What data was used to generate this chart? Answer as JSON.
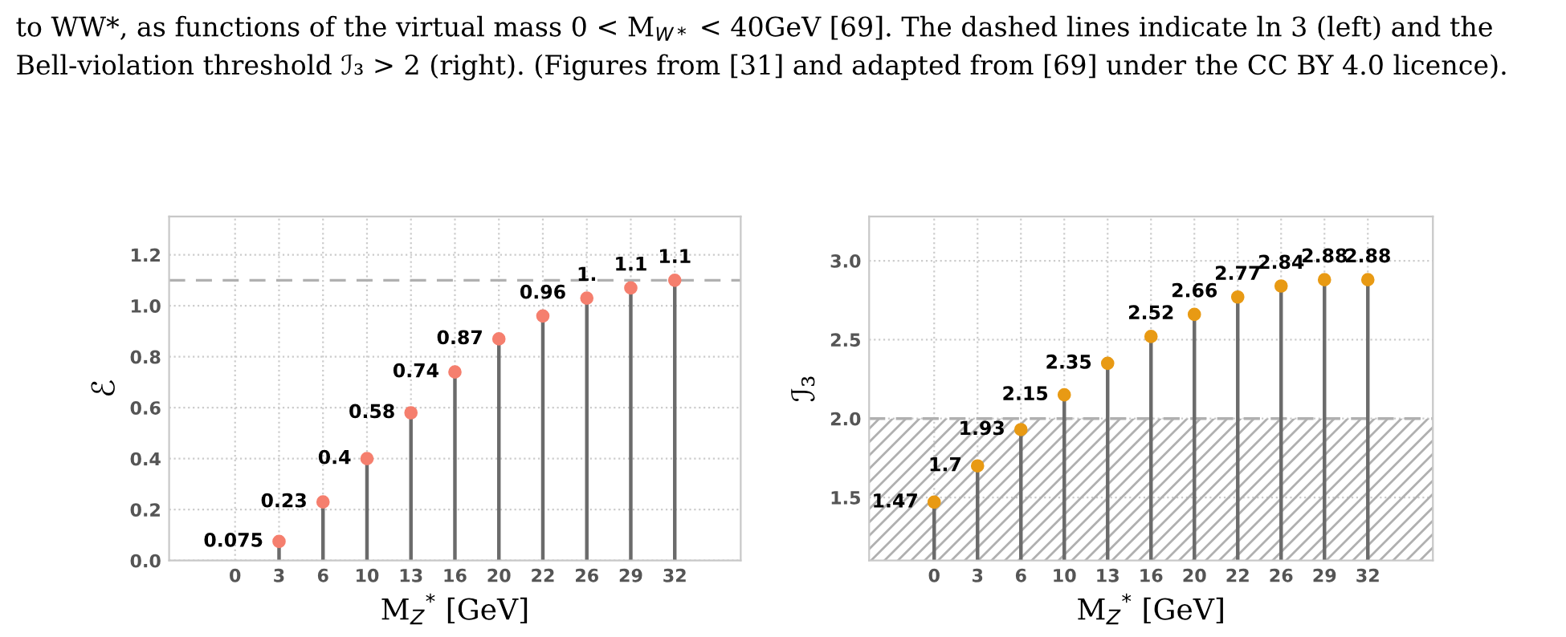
{
  "chart_data": [
    {
      "type": "lollipop",
      "xlabel": "M$_{Z}$$^{*}$ [GeV]",
      "ylabel": "ℰ",
      "annotations": [
        "to WW*, as functions of the virtual mass 0 < M$_{W*}$ < 40GeV [69]. The dashed lines indicate ln 3 (left) and the",
        "Bell-violation threshold ℐ₃ > 2 (right). (Figures from [31] and adapted from [69] under the CC BY 4.0 licence)."
      ],
      "categories": [
        "0",
        "3",
        "6",
        "10",
        "13",
        "16",
        "20",
        "22",
        "26",
        "29",
        "32"
      ],
      "series": [
        {
          "color": "#f57f6e",
          "values": [
            null,
            0.075,
            0.23,
            0.4,
            0.58,
            0.74,
            0.87,
            0.96,
            1.03,
            1.07,
            1.1
          ],
          "value_labels": [
            null,
            "0.075",
            "0.23",
            "0.4",
            "0.58",
            "0.74",
            "0.87",
            "0.96",
            "1.",
            "1.1",
            "1.1"
          ]
        }
      ],
      "ylim": [
        0,
        1.35
      ],
      "yticks": [
        {
          "value": 0,
          "label": "0.0"
        },
        0.2,
        0.4,
        0.6,
        0.8,
        {
          "value": 1,
          "label": "1.0"
        },
        1.2
      ],
      "ref_lines": [
        {
          "axis": "y",
          "value": 1.1,
          "color": "#b0b0b0",
          "line_style": "dashed"
        }
      ],
      "grid": true,
      "marker": "circle"
    },
    {
      "type": "lollipop",
      "xlabel": "M$_{Z}$$^{*}$ [GeV]",
      "ylabel": "ℐ₃",
      "categories": [
        "0",
        "3",
        "6",
        "10",
        "13",
        "16",
        "20",
        "22",
        "26",
        "29",
        "32"
      ],
      "series": [
        {
          "color": "#e89a14",
          "values": [
            1.47,
            1.7,
            1.93,
            2.15,
            2.35,
            2.52,
            2.66,
            2.77,
            2.84,
            2.88,
            2.88
          ],
          "value_labels": [
            "1.47",
            "1.7",
            "1.93",
            "2.15",
            "2.35",
            "2.52",
            "2.66",
            "2.77",
            "2.84",
            "2.88",
            "2.88"
          ]
        }
      ],
      "ylim": [
        1.1,
        3.28
      ],
      "yticks": [
        1.5,
        {
          "value": 2,
          "label": "2.0"
        },
        2.5,
        {
          "value": 3,
          "label": "3.0"
        }
      ],
      "ref_lines": [
        {
          "axis": "y",
          "value": 2,
          "color": "#b0b0b0",
          "line_style": "dashed"
        }
      ],
      "bands": [
        {
          "axis": "y",
          "from": 1.1,
          "to": 2,
          "color": "#b0b0b0"
        }
      ],
      "grid": true,
      "marker": "circle"
    }
  ]
}
